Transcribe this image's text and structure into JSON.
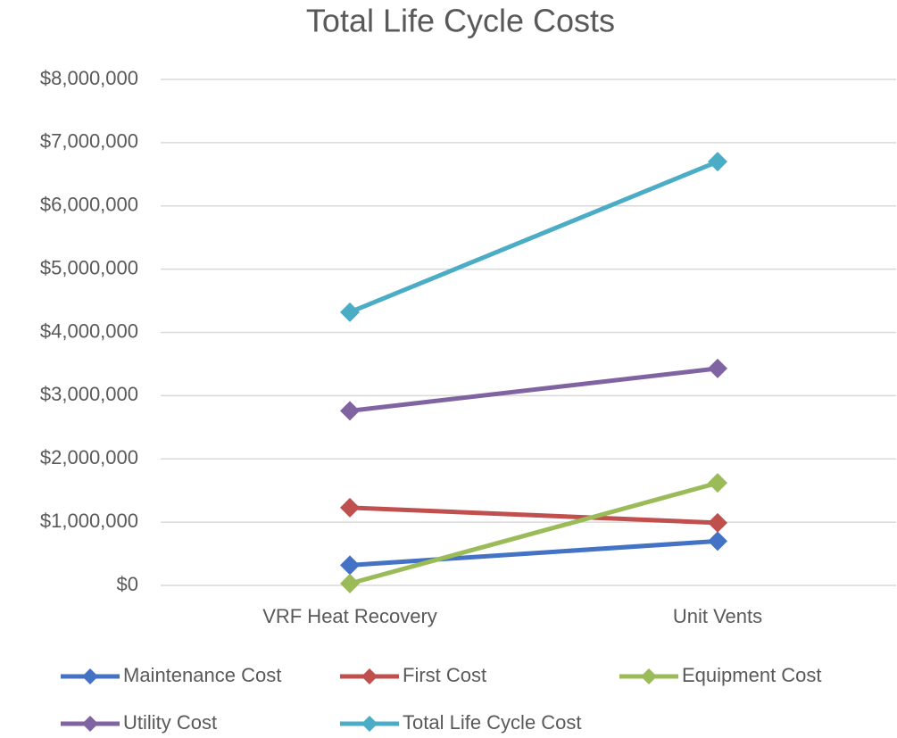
{
  "chart_data": {
    "type": "line",
    "title": "Total Life Cycle Costs",
    "categories": [
      "VRF Heat Recovery",
      "Unit Vents"
    ],
    "series": [
      {
        "name": "Maintenance Cost",
        "color": "#4472c4",
        "values": [
          320000,
          700000
        ]
      },
      {
        "name": "First Cost",
        "color": "#c0504d",
        "values": [
          1230000,
          990000
        ]
      },
      {
        "name": "Equipment Cost",
        "color": "#9bbb59",
        "values": [
          30000,
          1620000
        ]
      },
      {
        "name": "Utility Cost",
        "color": "#8064a2",
        "values": [
          2760000,
          3430000
        ]
      },
      {
        "name": "Total Life Cycle Cost",
        "color": "#4bacc6",
        "values": [
          4320000,
          6700000
        ]
      }
    ],
    "ylim": [
      0,
      8000000
    ],
    "yticks": [
      {
        "value": 0,
        "label": "$0"
      },
      {
        "value": 1000000,
        "label": "$1,000,000"
      },
      {
        "value": 2000000,
        "label": "$2,000,000"
      },
      {
        "value": 3000000,
        "label": "$3,000,000"
      },
      {
        "value": 4000000,
        "label": "$4,000,000"
      },
      {
        "value": 5000000,
        "label": "$5,000,000"
      },
      {
        "value": 6000000,
        "label": "$6,000,000"
      },
      {
        "value": 7000000,
        "label": "$7,000,000"
      },
      {
        "value": 8000000,
        "label": "$8,000,000"
      }
    ],
    "grid": true,
    "legend": "bottom"
  }
}
